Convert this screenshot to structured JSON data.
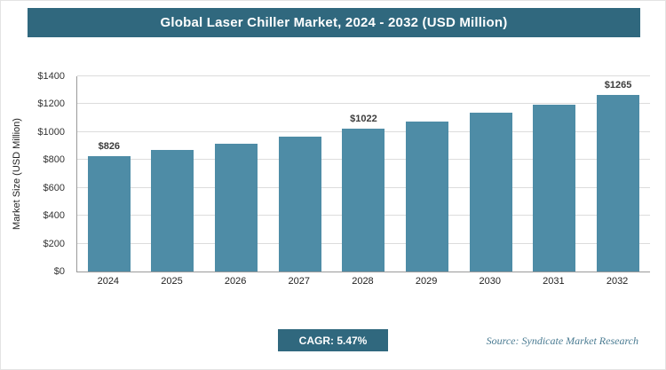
{
  "chart_data": {
    "type": "bar",
    "title": "Global Laser Chiller Market, 2024 - 2032 (USD Million)",
    "categories": [
      "2024",
      "2025",
      "2026",
      "2027",
      "2028",
      "2029",
      "2030",
      "2031",
      "2032"
    ],
    "values": [
      826,
      871,
      919,
      969,
      1022,
      1078,
      1137,
      1199,
      1265
    ],
    "bar_labels": [
      "$826",
      "",
      "",
      "",
      "$1022",
      "",
      "",
      "",
      "$1265"
    ],
    "xlabel": "",
    "ylabel": "Market Size (USD Million)",
    "ylim": [
      0,
      1400
    ],
    "ytick_step": 200,
    "ytick_labels": [
      "$0",
      "$200",
      "$400",
      "$600",
      "$800",
      "$1000",
      "$1200",
      "$1400"
    ],
    "grid": true,
    "legend": "none"
  },
  "footer": {
    "cagr": "CAGR: 5.47%",
    "source": "Source: Syndicate Market Research"
  },
  "colors": {
    "header_bg": "#30687e",
    "bar": "#4e8ca6",
    "badge_bg": "#30687e",
    "gridline": "#dcdcdc"
  }
}
